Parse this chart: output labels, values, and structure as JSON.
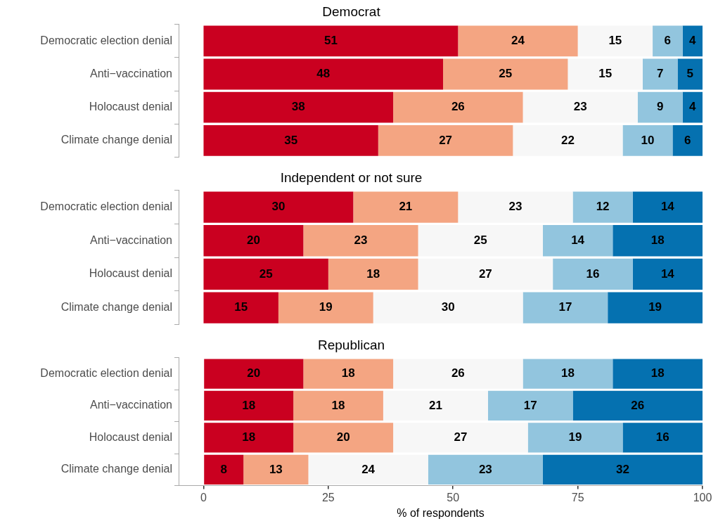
{
  "chart_data": [
    {
      "type": "bar",
      "title": "Democrat",
      "orientation": "horizontal",
      "stacked": true,
      "data_labels": true,
      "grid": false,
      "legend": false,
      "tick_labels": "y",
      "categories": [
        "Democratic election denial",
        "Anti−vaccination",
        "Holocaust denial",
        "Climate change denial"
      ],
      "xlim": [
        -5,
        100
      ],
      "xticks": [
        0,
        25,
        50,
        75,
        100
      ],
      "series": [
        {
          "color": "#ca0020",
          "values": [
            51,
            48,
            38,
            35
          ]
        },
        {
          "color": "#f4a582",
          "values": [
            24,
            25,
            26,
            27
          ]
        },
        {
          "color": "#f7f7f7",
          "values": [
            15,
            15,
            23,
            22
          ]
        },
        {
          "color": "#92c5de",
          "values": [
            6,
            7,
            9,
            10
          ]
        },
        {
          "color": "#0571b0",
          "values": [
            4,
            5,
            4,
            6
          ]
        }
      ]
    },
    {
      "type": "bar",
      "title": "Independent or not sure",
      "orientation": "horizontal",
      "stacked": true,
      "data_labels": true,
      "grid": false,
      "legend": false,
      "tick_labels": "y",
      "categories": [
        "Democratic election denial",
        "Anti−vaccination",
        "Holocaust denial",
        "Climate change denial"
      ],
      "xlim": [
        -5,
        100
      ],
      "xticks": [
        0,
        25,
        50,
        75,
        100
      ],
      "series": [
        {
          "color": "#ca0020",
          "values": [
            30,
            20,
            25,
            15
          ]
        },
        {
          "color": "#f4a582",
          "values": [
            21,
            23,
            18,
            19
          ]
        },
        {
          "color": "#f7f7f7",
          "values": [
            23,
            25,
            27,
            30
          ]
        },
        {
          "color": "#92c5de",
          "values": [
            12,
            14,
            16,
            17
          ]
        },
        {
          "color": "#0571b0",
          "values": [
            14,
            18,
            14,
            19
          ]
        }
      ]
    },
    {
      "type": "bar",
      "title": "Republican",
      "xlabel": "% of respondents",
      "orientation": "horizontal",
      "stacked": true,
      "data_labels": true,
      "grid": false,
      "legend": false,
      "categories": [
        "Democratic election denial",
        "Anti−vaccination",
        "Holocaust denial",
        "Climate change denial"
      ],
      "xlim": [
        -5,
        100
      ],
      "xticks": [
        0,
        25,
        50,
        75,
        100
      ],
      "series": [
        {
          "color": "#ca0020",
          "values": [
            20,
            18,
            18,
            8
          ]
        },
        {
          "color": "#f4a582",
          "values": [
            18,
            18,
            20,
            13
          ]
        },
        {
          "color": "#f7f7f7",
          "values": [
            26,
            21,
            27,
            24
          ]
        },
        {
          "color": "#92c5de",
          "values": [
            18,
            17,
            19,
            23
          ]
        },
        {
          "color": "#0571b0",
          "values": [
            18,
            26,
            16,
            32
          ]
        }
      ]
    }
  ]
}
